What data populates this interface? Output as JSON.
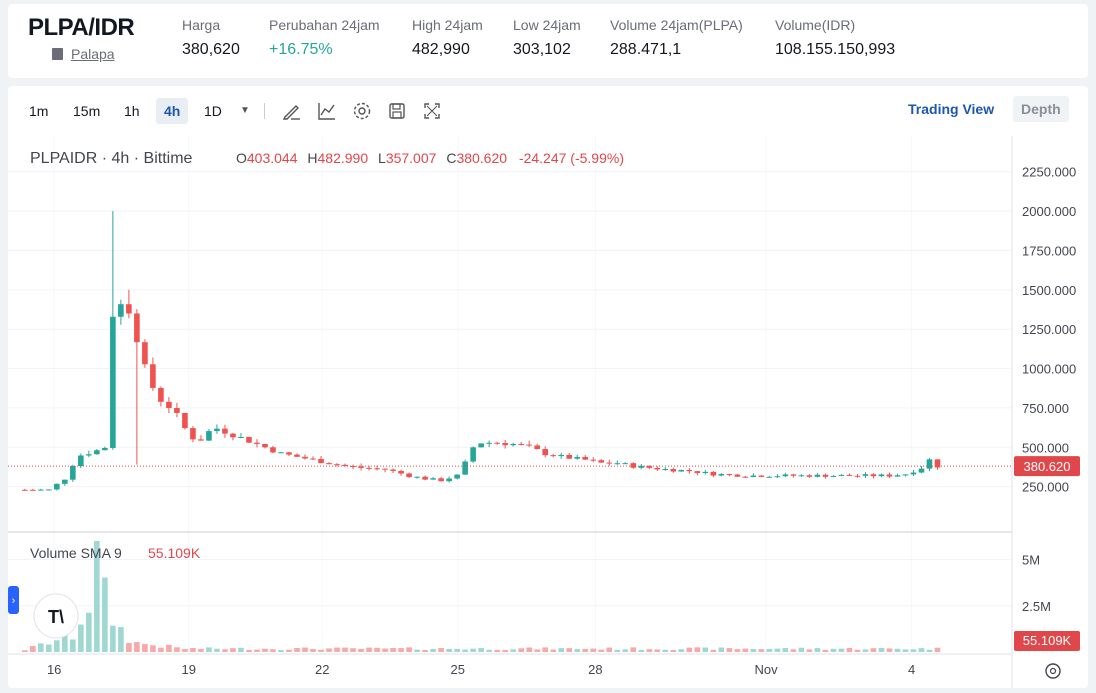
{
  "header": {
    "pair": "PLPA/IDR",
    "network": "Palapa",
    "stats": [
      {
        "label": "Harga",
        "value": "380,620",
        "trend": "neutral"
      },
      {
        "label": "Perubahan 24jam",
        "value": "+16.75%",
        "trend": "up"
      },
      {
        "label": "High 24jam",
        "value": "482,990",
        "trend": "neutral"
      },
      {
        "label": "Low 24jam",
        "value": "303,102",
        "trend": "neutral"
      },
      {
        "label": "Volume 24jam(PLPA)",
        "value": "288.471,1",
        "trend": "neutral"
      },
      {
        "label": "Volume(IDR)",
        "value": "108.155.150,993",
        "trend": "neutral"
      }
    ]
  },
  "toolbar": {
    "timeframes": [
      "1m",
      "15m",
      "1h",
      "4h",
      "1D"
    ],
    "active_timeframe": "4h",
    "dropdown_icon": "caret-down-icon",
    "tools": [
      "draw-icon",
      "indicator-icon",
      "settings-icon",
      "save-icon",
      "fullscreen-icon"
    ],
    "trading_view_label": "Trading View",
    "depth_label": "Depth"
  },
  "legend": {
    "symbol": "PLPAIDR · 4h · Bittime",
    "o_label": "O",
    "o_value": "403.044",
    "h_label": "H",
    "h_value": "482.990",
    "l_label": "L",
    "l_value": "357.007",
    "c_label": "C",
    "c_value": "380.620",
    "change": "-24.247 (-5.99%)"
  },
  "volume_legend": {
    "label": "Volume SMA 9",
    "value": "55.109K"
  },
  "colors": {
    "up": "#26a69a",
    "down": "#ef5350",
    "vol_up": "#9fd8d2",
    "vol_down": "#f7a9a7",
    "accent": "#1c57b0",
    "label_bg": "#e0474a"
  },
  "chart_data": {
    "type": "candlestick",
    "price_axis": {
      "ticks": [
        "2250.000",
        "2000.000",
        "1750.000",
        "1500.000",
        "1250.000",
        "1000.000",
        "750.000",
        "500.000",
        "250.000"
      ],
      "ylim": [
        0,
        2350
      ]
    },
    "volume_axis": {
      "ticks": [
        "5M",
        "2.5M"
      ],
      "ylim": [
        0,
        6000000
      ]
    },
    "time_axis": {
      "labels": [
        "16",
        "19",
        "22",
        "25",
        "28",
        "Nov",
        "4"
      ]
    },
    "current_price": "380.620",
    "current_volume_sma": "55.109K",
    "price_path": [
      [
        0,
        230
      ],
      [
        3,
        230
      ],
      [
        5,
        300
      ],
      [
        6,
        390
      ],
      [
        7,
        450
      ],
      [
        9,
        480
      ],
      [
        10,
        500
      ],
      [
        11,
        1350
      ],
      [
        12,
        1400
      ],
      [
        13,
        1380
      ],
      [
        14,
        1200
      ],
      [
        15,
        1000
      ],
      [
        16,
        880
      ],
      [
        17,
        800
      ],
      [
        18,
        760
      ],
      [
        19,
        700
      ],
      [
        20,
        620
      ],
      [
        21,
        560
      ],
      [
        22,
        550
      ],
      [
        23,
        600
      ],
      [
        24,
        620
      ],
      [
        25,
        600
      ],
      [
        26,
        580
      ],
      [
        27,
        560
      ],
      [
        28,
        540
      ],
      [
        30,
        500
      ],
      [
        32,
        460
      ],
      [
        34,
        440
      ],
      [
        36,
        420
      ],
      [
        38,
        400
      ],
      [
        40,
        380
      ],
      [
        42,
        370
      ],
      [
        45,
        360
      ],
      [
        48,
        320
      ],
      [
        50,
        300
      ],
      [
        52,
        290
      ],
      [
        54,
        320
      ],
      [
        55,
        400
      ],
      [
        56,
        500
      ],
      [
        57,
        530
      ],
      [
        59,
        530
      ],
      [
        61,
        520
      ],
      [
        63,
        500
      ],
      [
        65,
        460
      ],
      [
        67,
        440
      ],
      [
        70,
        420
      ],
      [
        72,
        400
      ],
      [
        74,
        400
      ],
      [
        76,
        380
      ],
      [
        78,
        370
      ],
      [
        80,
        360
      ],
      [
        83,
        350
      ],
      [
        86,
        330
      ],
      [
        90,
        320
      ],
      [
        94,
        320
      ],
      [
        98,
        320
      ],
      [
        102,
        320
      ],
      [
        106,
        320
      ],
      [
        108,
        320
      ],
      [
        110,
        330
      ],
      [
        112,
        370
      ],
      [
        113,
        420
      ],
      [
        114,
        380
      ]
    ],
    "spikes": [
      [
        11,
        2000
      ],
      [
        13,
        1500
      ],
      [
        14,
        390
      ]
    ],
    "volume_path": [
      [
        0,
        0.02
      ],
      [
        6,
        0.15
      ],
      [
        7,
        0.3
      ],
      [
        8,
        0.45
      ],
      [
        9,
        0.9
      ],
      [
        10,
        0.5
      ],
      [
        11,
        0.3
      ],
      [
        12,
        0.2
      ],
      [
        13,
        0.12
      ],
      [
        14,
        0.08
      ],
      [
        20,
        0.03
      ],
      [
        114,
        0.03
      ]
    ]
  }
}
